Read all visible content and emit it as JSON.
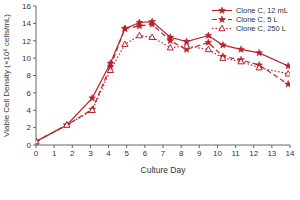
{
  "chart_data": {
    "type": "line",
    "x_label": "Culture Day",
    "y_label": "Viable Cell Density (×10⁶ cells/mL)",
    "x": [
      0,
      1.7,
      3.1,
      4.1,
      4.9,
      5.7,
      6.4,
      7.4,
      8.3,
      9.5,
      10.3,
      11.3,
      12.3,
      13.9
    ],
    "series": [
      {
        "name": "Clone C, 12 mL",
        "color": "#b5232e",
        "marker": "star",
        "line_style": "solid",
        "values": [
          0.4,
          2.3,
          5.4,
          9.4,
          13.4,
          14.1,
          14.2,
          12.4,
          11.9,
          12.6,
          11.5,
          11.0,
          10.6,
          9.1
        ]
      },
      {
        "name": "Clone C, 5 L",
        "color": "#b5232e",
        "marker": "star",
        "line_style": "dashed",
        "values": [
          0.4,
          2.3,
          4.1,
          9.0,
          13.4,
          13.7,
          13.9,
          12.0,
          11.0,
          11.8,
          10.2,
          9.8,
          9.2,
          7.0
        ]
      },
      {
        "name": "Clone C, 250 L",
        "color": "#b5232e",
        "marker": "triangle-open",
        "line_style": "dotted",
        "values": [
          0.4,
          2.3,
          4.0,
          8.6,
          11.6,
          12.6,
          12.4,
          11.2,
          11.4,
          11.0,
          10.0,
          9.6,
          8.9,
          8.2
        ]
      }
    ],
    "xlim": [
      0,
      14
    ],
    "xticks": [
      0,
      1,
      2,
      3,
      4,
      5,
      6,
      7,
      8,
      9,
      10,
      11,
      12,
      13,
      14
    ],
    "ylim": [
      0,
      16
    ],
    "yticks": [
      0,
      2,
      4,
      6,
      8,
      10,
      12,
      14,
      16
    ],
    "grid": false,
    "legend": "top right"
  }
}
